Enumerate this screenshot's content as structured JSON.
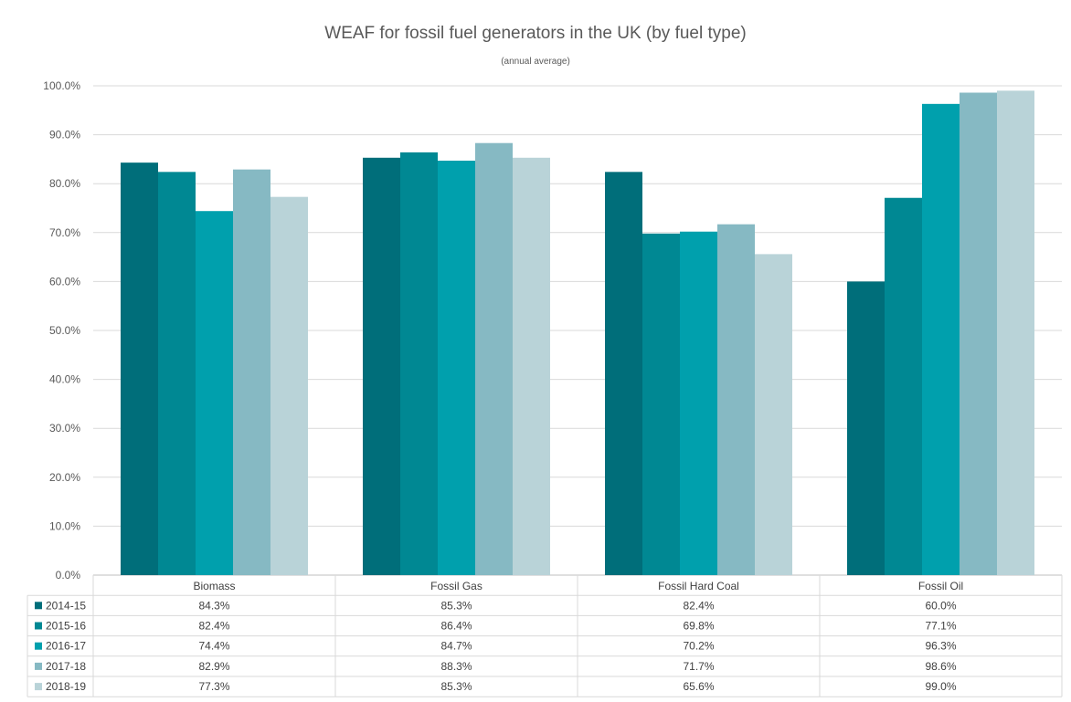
{
  "chart_data": {
    "type": "bar",
    "title": "WEAF for fossil fuel generators in the UK (by fuel type)",
    "subtitle": "(annual average)",
    "categories": [
      "Biomass",
      "Fossil Gas",
      "Fossil Hard Coal",
      "Fossil Oil"
    ],
    "series": [
      {
        "name": "2014-15",
        "color": "#006e7a",
        "values": [
          84.3,
          85.3,
          82.4,
          60.0
        ],
        "labels": [
          "84.3%",
          "85.3%",
          "82.4%",
          "60.0%"
        ]
      },
      {
        "name": "2015-16",
        "color": "#008893",
        "values": [
          82.4,
          86.4,
          69.8,
          77.1
        ],
        "labels": [
          "82.4%",
          "86.4%",
          "69.8%",
          "77.1%"
        ]
      },
      {
        "name": "2016-17",
        "color": "#00a0ad",
        "values": [
          74.4,
          84.7,
          70.2,
          96.3
        ],
        "labels": [
          "74.4%",
          "84.7%",
          "70.2%",
          "96.3%"
        ]
      },
      {
        "name": "2017-18",
        "color": "#86b9c3",
        "values": [
          82.9,
          88.3,
          71.7,
          98.6
        ],
        "labels": [
          "82.9%",
          "88.3%",
          "71.7%",
          "98.6%"
        ]
      },
      {
        "name": "2018-19",
        "color": "#b9d3d8",
        "values": [
          77.3,
          85.3,
          65.6,
          99.0
        ],
        "labels": [
          "77.3%",
          "85.3%",
          "65.6%",
          "99.0%"
        ]
      }
    ],
    "ylim": [
      0,
      100
    ],
    "yticks": [
      "0.0%",
      "10.0%",
      "20.0%",
      "30.0%",
      "40.0%",
      "50.0%",
      "60.0%",
      "70.0%",
      "80.0%",
      "90.0%",
      "100.0%"
    ],
    "grid": true,
    "legend": "data-table-below"
  }
}
